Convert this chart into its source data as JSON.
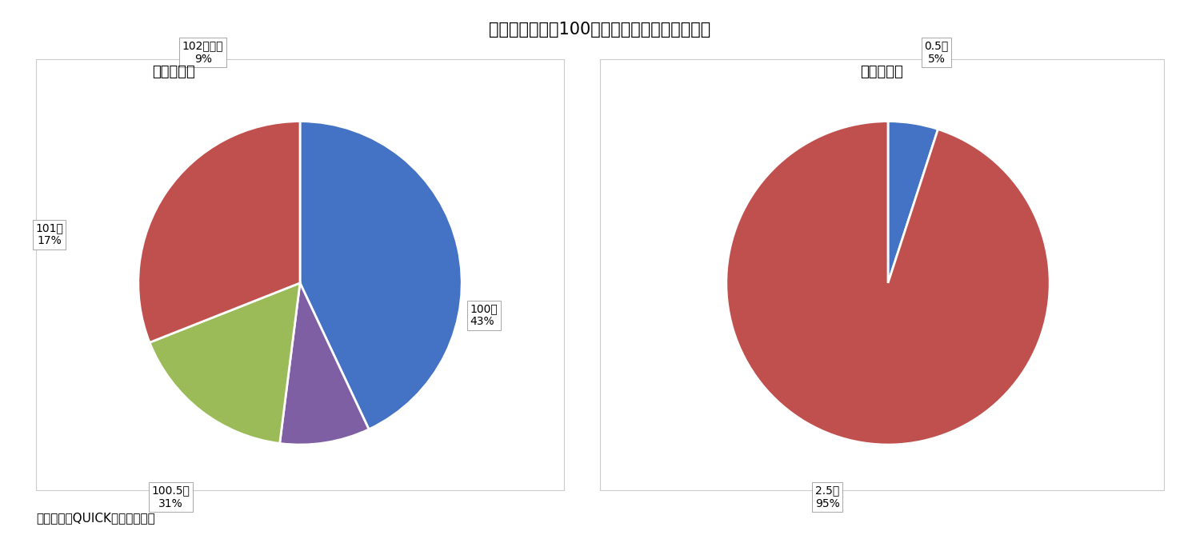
{
  "title": "》図表５》額面100円あたりの払込額と手数料",
  "title_fontsize": 15,
  "chart1_title": "＜払込額＞",
  "chart2_title": "＜手数料＞",
  "subtitle_fontsize": 13,
  "chart1_values": [
    43,
    31,
    17,
    9
  ],
  "chart1_colors": [
    "#4472C4",
    "#C0504D",
    "#9BBB59",
    "#7F5FA4"
  ],
  "chart1_label_lines": [
    [
      "100円",
      "43%"
    ],
    [
      "100.5円",
      "31%"
    ],
    [
      "101円",
      "17%"
    ],
    [
      "102円以上",
      "9%"
    ]
  ],
  "chart2_values": [
    5,
    95
  ],
  "chart2_colors": [
    "#4472C4",
    "#C0504D"
  ],
  "chart2_label_lines": [
    [
      "0.5円",
      "5%"
    ],
    [
      "2.5円",
      "95%"
    ]
  ],
  "label_fontsize": 10,
  "background_color": "#ffffff",
  "source_text": "（資料）　QUICKより筆者作成",
  "source_fontsize": 11
}
